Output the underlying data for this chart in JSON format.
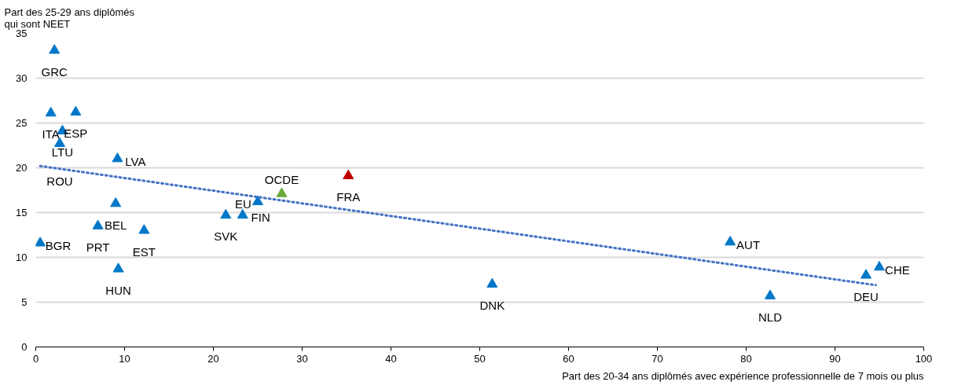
{
  "chart_data": {
    "type": "scatter",
    "ylabel": "Part des 25-29 ans diplômés\nqui sont NEET",
    "xlabel": "Part des 20-34 ans diplômés avec expérience professionnelle de 7 mois ou plus",
    "series": [
      {
        "color": "#0077c8",
        "x": [
          2.1,
          1.7,
          4.5,
          3.0,
          2.7,
          9.2,
          9.0,
          7.0,
          12.2,
          0.5,
          9.3,
          21.4,
          23.3,
          25.0,
          51.4,
          78.2,
          82.7,
          93.5,
          95.0
        ],
        "values": [
          33.1,
          26.1,
          26.2,
          24.1,
          22.7,
          21.0,
          16.0,
          13.5,
          13.0,
          11.6,
          8.7,
          14.7,
          14.7,
          16.2,
          7.0,
          11.7,
          5.7,
          8.0,
          8.9
        ]
      },
      {
        "color": "#6aaa3a",
        "x": [
          27.7
        ],
        "values": [
          17.1
        ]
      },
      {
        "color": "#c00000",
        "x": [
          35.2
        ],
        "values": [
          19.1
        ]
      },
      {
        "type": "line",
        "color": "#4472c4",
        "line_style": "dotted",
        "marker": "none",
        "x": [
          0.5,
          94.6
        ],
        "values": [
          20.2,
          6.9
        ]
      }
    ],
    "annotations": [
      {
        "text": "GRC",
        "x": 2.1,
        "y": 33.1
      },
      {
        "text": "ITA",
        "x": 1.7,
        "y": 26.1
      },
      {
        "text": "ESP",
        "x": 4.5,
        "y": 26.2
      },
      {
        "text": "LTU",
        "x": 3.0,
        "y": 24.1
      },
      {
        "text": "ROU",
        "x": 2.7,
        "y": 22.7
      },
      {
        "text": "LVA",
        "x": 9.2,
        "y": 21.0
      },
      {
        "text": "BEL",
        "x": 9.0,
        "y": 16.0
      },
      {
        "text": "PRT",
        "x": 7.0,
        "y": 13.5
      },
      {
        "text": "EST",
        "x": 12.2,
        "y": 13.0
      },
      {
        "text": "BGR",
        "x": 0.5,
        "y": 11.6
      },
      {
        "text": "HUN",
        "x": 9.3,
        "y": 8.7
      },
      {
        "text": "SVK",
        "x": 21.4,
        "y": 14.7
      },
      {
        "text": "FIN",
        "x": 23.3,
        "y": 14.7
      },
      {
        "text": "EU",
        "x": 25.0,
        "y": 16.2
      },
      {
        "text": "OCDE",
        "x": 27.7,
        "y": 17.1
      },
      {
        "text": "FRA",
        "x": 35.2,
        "y": 19.1
      },
      {
        "text": "DNK",
        "x": 51.4,
        "y": 7.0
      },
      {
        "text": "AUT",
        "x": 78.2,
        "y": 11.7
      },
      {
        "text": "NLD",
        "x": 82.7,
        "y": 5.7
      },
      {
        "text": "DEU",
        "x": 93.5,
        "y": 8.0
      },
      {
        "text": "CHE",
        "x": 95.0,
        "y": 8.9
      }
    ],
    "marker": "triangle",
    "grid": "y",
    "xlim": [
      0,
      100
    ],
    "xticks": [
      0,
      10,
      20,
      30,
      40,
      50,
      60,
      70,
      80,
      90,
      100
    ],
    "ylim": [
      0,
      35
    ],
    "yticks": [
      0,
      5,
      10,
      15,
      20,
      25,
      30,
      35
    ]
  }
}
